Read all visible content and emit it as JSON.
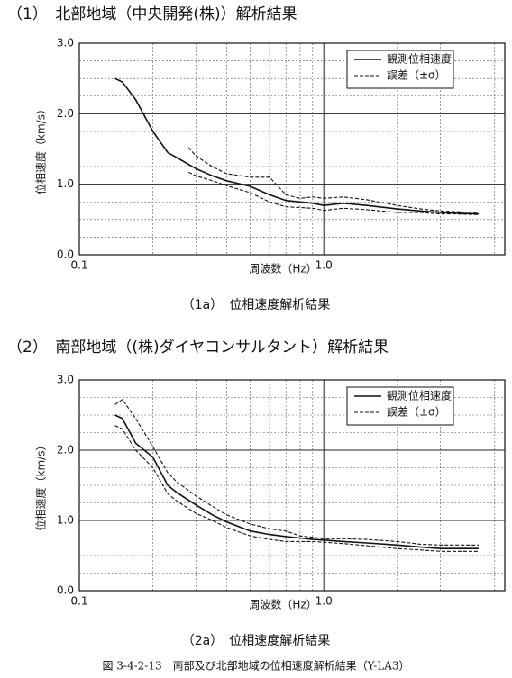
{
  "figure_caption": "図 3-4-2-13　南部及び北部地域の位相速度解析結果（Y-LA3）",
  "chart_data": [
    {
      "type": "line",
      "heading": "（1）　北部地域（中央開発(株)）解析結果",
      "caption": "（1a）　位相速度解析結果",
      "x_label": "周波数（Hz）",
      "y_label": "位相速度（km/s）",
      "xscale": "log",
      "grid": true,
      "legend": "upper right",
      "xlim": [
        0.1,
        5.5
      ],
      "ylim": [
        0,
        3
      ],
      "xticks": [
        0.1,
        {
          "value": 1,
          "label": "1.0"
        }
      ],
      "yticks": [
        {
          "value": 0,
          "label": "0.0"
        },
        {
          "value": 1,
          "label": "1.0"
        },
        {
          "value": 2,
          "label": "2.0"
        },
        {
          "value": 3,
          "label": "3.0"
        }
      ],
      "x": [
        0.14,
        0.15,
        0.17,
        0.2,
        0.23,
        0.25,
        0.28,
        0.3,
        0.35,
        0.4,
        0.5,
        0.6,
        0.7,
        0.8,
        0.9,
        1.0,
        1.2,
        1.5,
        2,
        2.5,
        3,
        3.5,
        4.3
      ],
      "series": [
        {
          "name": "観測位相速度",
          "color": "#111111",
          "style": "solid",
          "values": [
            2.5,
            2.45,
            2.2,
            1.75,
            1.45,
            1.38,
            1.28,
            1.22,
            1.12,
            1.05,
            0.97,
            0.85,
            0.77,
            0.75,
            0.73,
            0.7,
            0.73,
            0.7,
            0.65,
            0.62,
            0.6,
            0.59,
            0.58
          ]
        },
        {
          "name": "誤差（±σ）",
          "color": "#111111",
          "style": "dashed",
          "upper": [
            null,
            null,
            null,
            null,
            null,
            null,
            1.52,
            1.4,
            1.25,
            1.15,
            1.1,
            1.1,
            0.85,
            0.8,
            0.82,
            0.8,
            0.82,
            0.78,
            0.7,
            0.65,
            0.62,
            0.61,
            0.6
          ],
          "lower": [
            null,
            null,
            null,
            null,
            null,
            null,
            1.17,
            1.12,
            1.05,
            0.98,
            0.88,
            0.75,
            0.68,
            0.67,
            0.66,
            0.63,
            0.66,
            0.64,
            0.6,
            0.6,
            0.58,
            0.58,
            0.57
          ]
        }
      ]
    },
    {
      "type": "line",
      "heading": "（2）　南部地域（(株)ダイヤコンサルタント）解析結果",
      "caption": "（2a）　位相速度解析結果",
      "x_label": "周波数（Hz）",
      "y_label": "位相速度（km/s）",
      "xscale": "log",
      "grid": true,
      "legend": "upper right",
      "xlim": [
        0.1,
        5.5
      ],
      "ylim": [
        0,
        3
      ],
      "xticks": [
        0.1,
        {
          "value": 1,
          "label": "1.0"
        }
      ],
      "yticks": [
        {
          "value": 0,
          "label": "0.0"
        },
        {
          "value": 1,
          "label": "1.0"
        },
        {
          "value": 2,
          "label": "2.0"
        },
        {
          "value": 3,
          "label": "3.0"
        }
      ],
      "x": [
        0.14,
        0.15,
        0.17,
        0.2,
        0.23,
        0.25,
        0.3,
        0.35,
        0.4,
        0.5,
        0.6,
        0.7,
        0.8,
        0.9,
        1.0,
        1.2,
        1.5,
        2,
        2.5,
        3,
        3.5,
        4.3
      ],
      "series": [
        {
          "name": "観測位相速度",
          "color": "#111111",
          "style": "solid",
          "values": [
            2.5,
            2.45,
            2.1,
            1.9,
            1.5,
            1.4,
            1.22,
            1.08,
            0.98,
            0.85,
            0.8,
            0.77,
            0.75,
            0.73,
            0.72,
            0.7,
            0.68,
            0.65,
            0.62,
            0.6,
            0.6,
            0.6
          ]
        },
        {
          "name": "誤差（±σ）",
          "color": "#111111",
          "style": "dashed",
          "upper": [
            2.65,
            2.72,
            2.45,
            2.05,
            1.68,
            1.55,
            1.35,
            1.2,
            1.08,
            0.95,
            0.88,
            0.85,
            0.78,
            0.76,
            0.74,
            0.74,
            0.73,
            0.7,
            0.66,
            0.65,
            0.65,
            0.65
          ],
          "lower": [
            2.35,
            2.3,
            2.0,
            1.75,
            1.38,
            1.28,
            1.1,
            1.0,
            0.9,
            0.78,
            0.73,
            0.7,
            0.7,
            0.7,
            0.69,
            0.67,
            0.64,
            0.6,
            0.58,
            0.56,
            0.56,
            0.56
          ]
        }
      ]
    }
  ]
}
